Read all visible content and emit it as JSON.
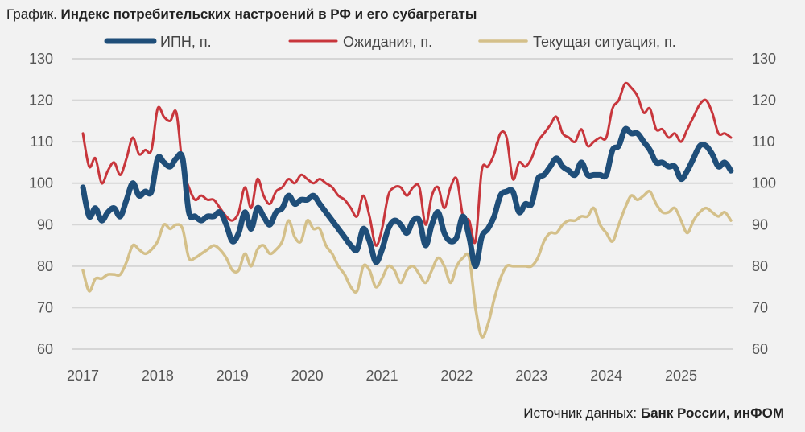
{
  "title": {
    "prefix": "График.",
    "main": "Индекс потребительских настроений в РФ и его субагрегаты"
  },
  "source": {
    "prefix": "Источник данных:",
    "main": "Банк России, инФОМ"
  },
  "chart_data": {
    "type": "line",
    "title": "Индекс потребительских настроений в РФ и его субагрегаты",
    "x_start": "2017-01",
    "x_frequency": "monthly",
    "xticks": [
      "2017",
      "2018",
      "2019",
      "2020",
      "2021",
      "2022",
      "2023",
      "2024",
      "2025"
    ],
    "ylim": [
      60,
      130
    ],
    "yticks": [
      60,
      70,
      80,
      90,
      100,
      110,
      120,
      130
    ],
    "y_axes": "left and right (mirrored)",
    "grid": true,
    "legend_position": "top",
    "series": [
      {
        "name": "ИПН, п.",
        "color": "#1f4e79",
        "values": [
          99,
          92,
          94,
          91,
          93,
          94,
          92,
          96,
          100,
          97,
          98,
          98,
          106,
          105,
          104,
          106,
          106,
          93,
          92,
          91,
          92,
          92,
          93,
          90,
          86,
          88,
          93,
          89,
          94,
          92,
          90,
          93,
          94,
          97,
          95,
          96,
          96,
          97,
          95,
          93,
          91,
          89,
          87,
          85,
          84,
          89,
          86,
          81,
          84,
          89,
          91,
          90,
          88,
          91,
          91,
          85,
          90,
          93,
          88,
          86,
          87,
          92,
          87,
          80,
          87,
          89,
          92,
          97,
          98,
          98,
          93,
          95,
          95,
          101,
          102,
          104,
          106,
          104,
          103,
          102,
          105,
          102,
          102,
          102,
          102,
          108,
          109,
          113,
          112,
          112,
          110,
          108,
          105,
          105,
          104,
          104,
          101,
          103,
          106,
          109,
          109,
          107,
          104,
          105,
          103
        ]
      },
      {
        "name": "Ожидания, п.",
        "color": "#c8363c",
        "values": [
          112,
          104,
          106,
          100,
          103,
          105,
          102,
          106,
          111,
          107,
          108,
          108,
          118,
          116,
          115,
          117,
          104,
          99,
          96,
          97,
          96,
          96,
          94,
          92,
          91,
          93,
          99,
          94,
          101,
          97,
          95,
          98,
          99,
          101,
          100,
          102,
          101,
          100,
          101,
          100,
          99,
          97,
          96,
          94,
          92,
          97,
          92,
          85,
          89,
          97,
          99,
          99,
          97,
          99,
          99,
          90,
          97,
          99,
          94,
          99,
          101,
          92,
          91,
          86,
          103,
          104,
          107,
          112,
          111,
          101,
          105,
          104,
          106,
          110,
          112,
          114,
          116,
          112,
          111,
          110,
          113,
          109,
          110,
          111,
          111,
          118,
          120,
          124,
          123,
          121,
          117,
          118,
          113,
          113,
          111,
          112,
          110,
          113,
          116,
          119,
          120,
          117,
          112,
          112,
          111
        ]
      },
      {
        "name": "Текущая ситуация, п.",
        "color": "#d4c08a",
        "values": [
          79,
          74,
          77,
          77,
          78,
          78,
          78,
          81,
          85,
          84,
          83,
          84,
          86,
          90,
          89,
          90,
          89,
          82,
          82,
          83,
          84,
          85,
          84,
          82,
          79,
          79,
          83,
          80,
          84,
          85,
          83,
          84,
          86,
          91,
          87,
          86,
          91,
          89,
          89,
          85,
          83,
          80,
          78,
          75,
          74,
          80,
          79,
          75,
          77,
          80,
          79,
          76,
          79,
          80,
          78,
          76,
          79,
          82,
          80,
          76,
          80,
          82,
          82,
          70,
          63,
          66,
          72,
          77,
          80,
          80,
          80,
          80,
          80,
          82,
          86,
          88,
          88,
          90,
          91,
          91,
          92,
          92,
          94,
          90,
          88,
          86,
          90,
          94,
          97,
          96,
          97,
          98,
          95,
          93,
          93,
          94,
          91,
          88,
          91,
          93,
          94,
          93,
          92,
          93,
          91
        ]
      }
    ]
  }
}
